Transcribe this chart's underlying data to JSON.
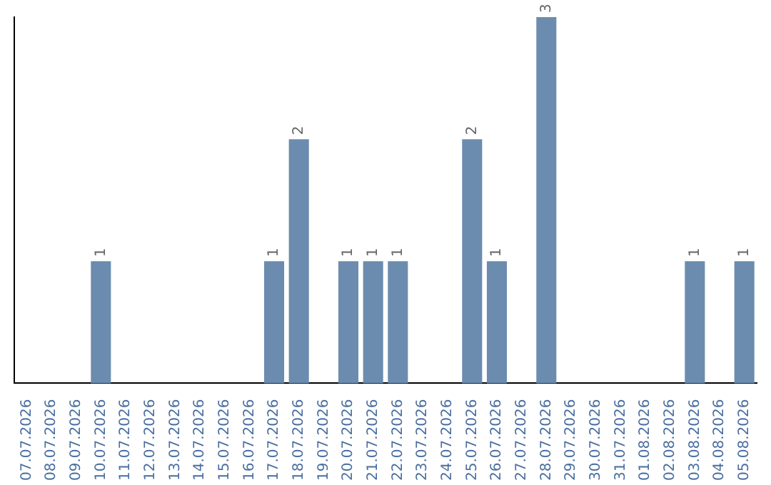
{
  "chart_data": {
    "type": "bar",
    "categories": [
      "07.07.2026",
      "08.07.2026",
      "09.07.2026",
      "10.07.2026",
      "11.07.2026",
      "12.07.2026",
      "13.07.2026",
      "14.07.2026",
      "15.07.2026",
      "16.07.2026",
      "17.07.2026",
      "18.07.2026",
      "19.07.2026",
      "20.07.2026",
      "21.07.2026",
      "22.07.2026",
      "23.07.2026",
      "24.07.2026",
      "25.07.2026",
      "26.07.2026",
      "27.07.2026",
      "28.07.2026",
      "29.07.2026",
      "30.07.2026",
      "31.07.2026",
      "01.08.2026",
      "02.08.2026",
      "03.08.2026",
      "04.08.2026",
      "05.08.2026"
    ],
    "values": [
      0,
      0,
      0,
      1,
      0,
      0,
      0,
      0,
      0,
      0,
      1,
      2,
      0,
      1,
      1,
      1,
      0,
      0,
      2,
      1,
      0,
      3,
      0,
      0,
      0,
      0,
      0,
      1,
      0,
      1
    ],
    "value_labels": [
      null,
      null,
      null,
      "1",
      null,
      null,
      null,
      null,
      null,
      null,
      "1",
      "2",
      null,
      "1",
      "1",
      "1",
      null,
      null,
      "2",
      "1",
      null,
      "3",
      null,
      null,
      null,
      null,
      null,
      "1",
      null,
      "1"
    ],
    "color": "#6b8cae",
    "tick_labels": "x",
    "grid": false,
    "legend": false
  }
}
